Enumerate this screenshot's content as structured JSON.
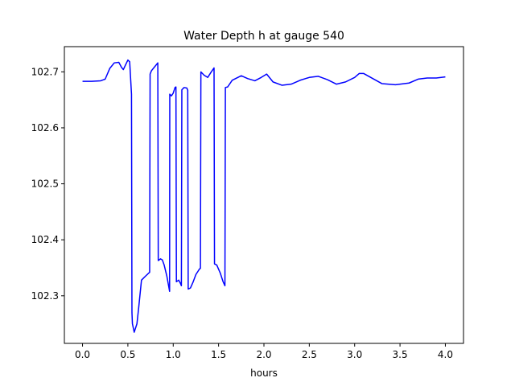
{
  "chart_data": {
    "type": "line",
    "title": "Water Depth h at gauge 540",
    "xlabel": "hours",
    "ylabel": "",
    "xlim": [
      -0.2,
      4.2
    ],
    "ylim": [
      102.215,
      102.745
    ],
    "xticks": [
      0.0,
      0.5,
      1.0,
      1.5,
      2.0,
      2.5,
      3.0,
      3.5,
      4.0
    ],
    "xtick_labels": [
      "0.0",
      "0.5",
      "1.0",
      "1.5",
      "2.0",
      "2.5",
      "3.0",
      "3.5",
      "4.0"
    ],
    "yticks": [
      102.3,
      102.4,
      102.5,
      102.6,
      102.7
    ],
    "ytick_labels": [
      "102.3",
      "102.4",
      "102.5",
      "102.6",
      "102.7"
    ],
    "grid": false,
    "series": [
      {
        "color": "#0000ff",
        "x": [
          0.0,
          0.1,
          0.2,
          0.25,
          0.3,
          0.35,
          0.4,
          0.43,
          0.45,
          0.47,
          0.5,
          0.52,
          0.54,
          0.545,
          0.55,
          0.57,
          0.6,
          0.62,
          0.65,
          0.7,
          0.74,
          0.745,
          0.76,
          0.8,
          0.83,
          0.835,
          0.86,
          0.88,
          0.9,
          0.93,
          0.96,
          0.962,
          0.98,
          1.0,
          1.02,
          1.03,
          1.035,
          1.06,
          1.08,
          1.09,
          1.095,
          1.12,
          1.15,
          1.16,
          1.165,
          1.19,
          1.22,
          1.25,
          1.29,
          1.3,
          1.305,
          1.34,
          1.38,
          1.42,
          1.45,
          1.455,
          1.48,
          1.52,
          1.55,
          1.57,
          1.575,
          1.6,
          1.65,
          1.75,
          1.82,
          1.9,
          1.97,
          2.03,
          2.1,
          2.2,
          2.3,
          2.4,
          2.5,
          2.6,
          2.7,
          2.8,
          2.9,
          3.0,
          3.05,
          3.1,
          3.2,
          3.3,
          3.45,
          3.6,
          3.7,
          3.8,
          3.9,
          4.0
        ],
        "y": [
          102.683,
          102.683,
          102.684,
          102.687,
          102.706,
          102.716,
          102.717,
          102.708,
          102.704,
          102.711,
          102.721,
          102.718,
          102.66,
          102.27,
          102.25,
          102.235,
          102.25,
          102.28,
          102.328,
          102.336,
          102.342,
          102.696,
          102.702,
          102.71,
          102.716,
          102.363,
          102.366,
          102.364,
          102.355,
          102.335,
          102.308,
          102.66,
          102.657,
          102.662,
          102.672,
          102.673,
          102.325,
          102.328,
          102.322,
          102.318,
          102.668,
          102.672,
          102.671,
          102.667,
          102.312,
          102.314,
          102.325,
          102.338,
          102.348,
          102.349,
          102.7,
          102.694,
          102.69,
          102.7,
          102.707,
          102.357,
          102.355,
          102.34,
          102.325,
          102.318,
          102.672,
          102.673,
          102.685,
          102.693,
          102.688,
          102.684,
          102.69,
          102.696,
          102.682,
          102.676,
          102.678,
          102.685,
          102.69,
          102.692,
          102.686,
          102.678,
          102.682,
          102.69,
          102.697,
          102.697,
          102.688,
          102.679,
          102.677,
          102.68,
          102.687,
          102.689,
          102.689,
          102.691
        ]
      }
    ]
  }
}
